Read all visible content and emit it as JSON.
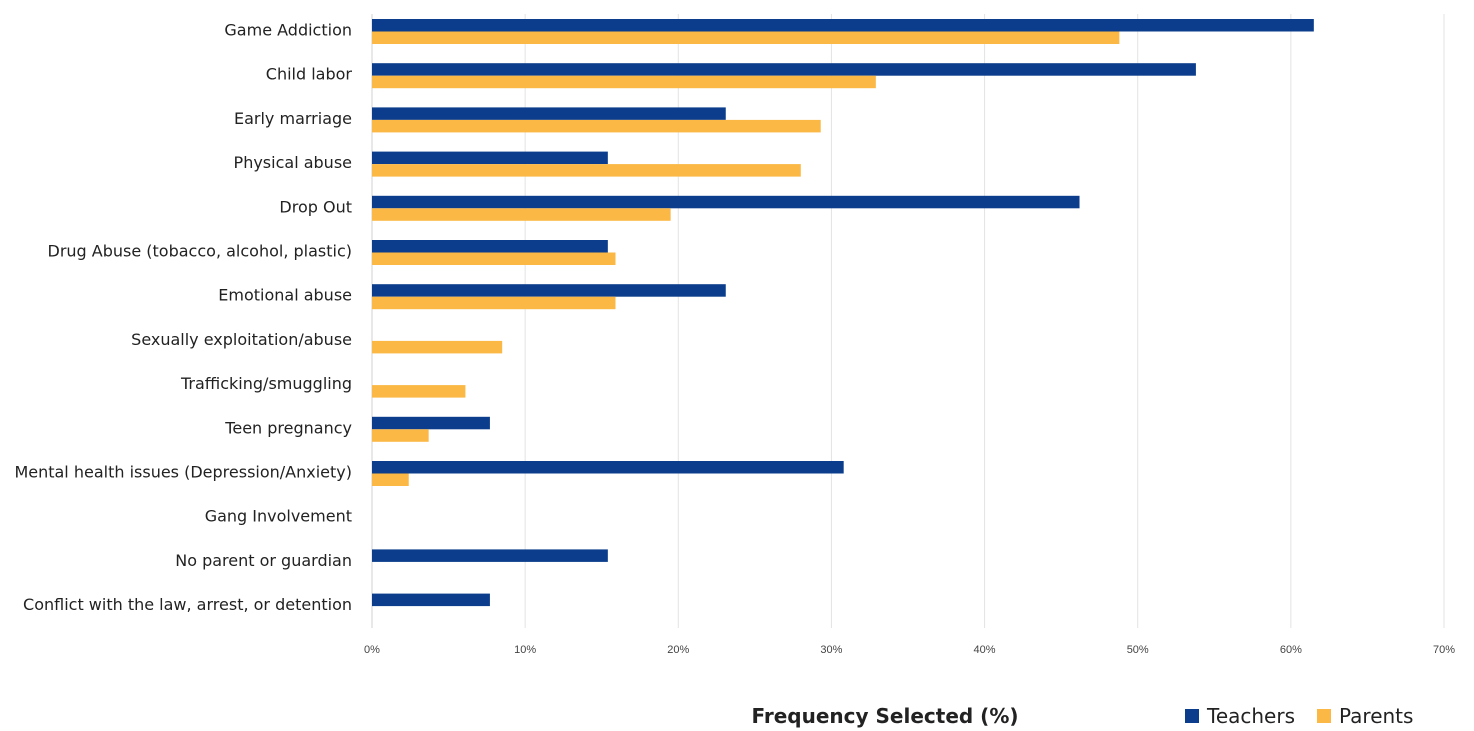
{
  "chart_data": {
    "type": "bar",
    "orientation": "horizontal",
    "categories": [
      "Game Addiction",
      "Child labor",
      "Early marriage",
      "Physical abuse",
      "Drop Out",
      "Drug Abuse (tobacco, alcohol, plastic)",
      "Emotional abuse",
      "Sexually exploitation/abuse",
      "Trafficking/smuggling",
      "Teen pregnancy",
      "Mental health issues (Depression/Anxiety)",
      "Gang Involvement",
      "No parent or guardian",
      "Conflict with the law, arrest, or detention"
    ],
    "series": [
      {
        "name": "Teachers",
        "color": "#0b3d8c",
        "values": [
          61.5,
          53.8,
          23.1,
          15.4,
          46.2,
          15.4,
          23.1,
          0,
          0,
          7.7,
          30.8,
          0,
          15.4,
          7.7
        ]
      },
      {
        "name": "Parents",
        "color": "#fbb845",
        "values": [
          48.8,
          32.9,
          29.3,
          28.0,
          19.5,
          15.9,
          15.9,
          8.5,
          6.1,
          3.7,
          2.4,
          0,
          0,
          0
        ]
      }
    ],
    "x_ticks": [
      "0%",
      "10%",
      "20%",
      "30%",
      "40%",
      "50%",
      "60%",
      "70%"
    ],
    "xlim": [
      0,
      70
    ],
    "xlabel": "Frequency Selected (%)",
    "ylabel": "",
    "title": "",
    "grid": "vertical",
    "legend_position": "bottom-right"
  }
}
